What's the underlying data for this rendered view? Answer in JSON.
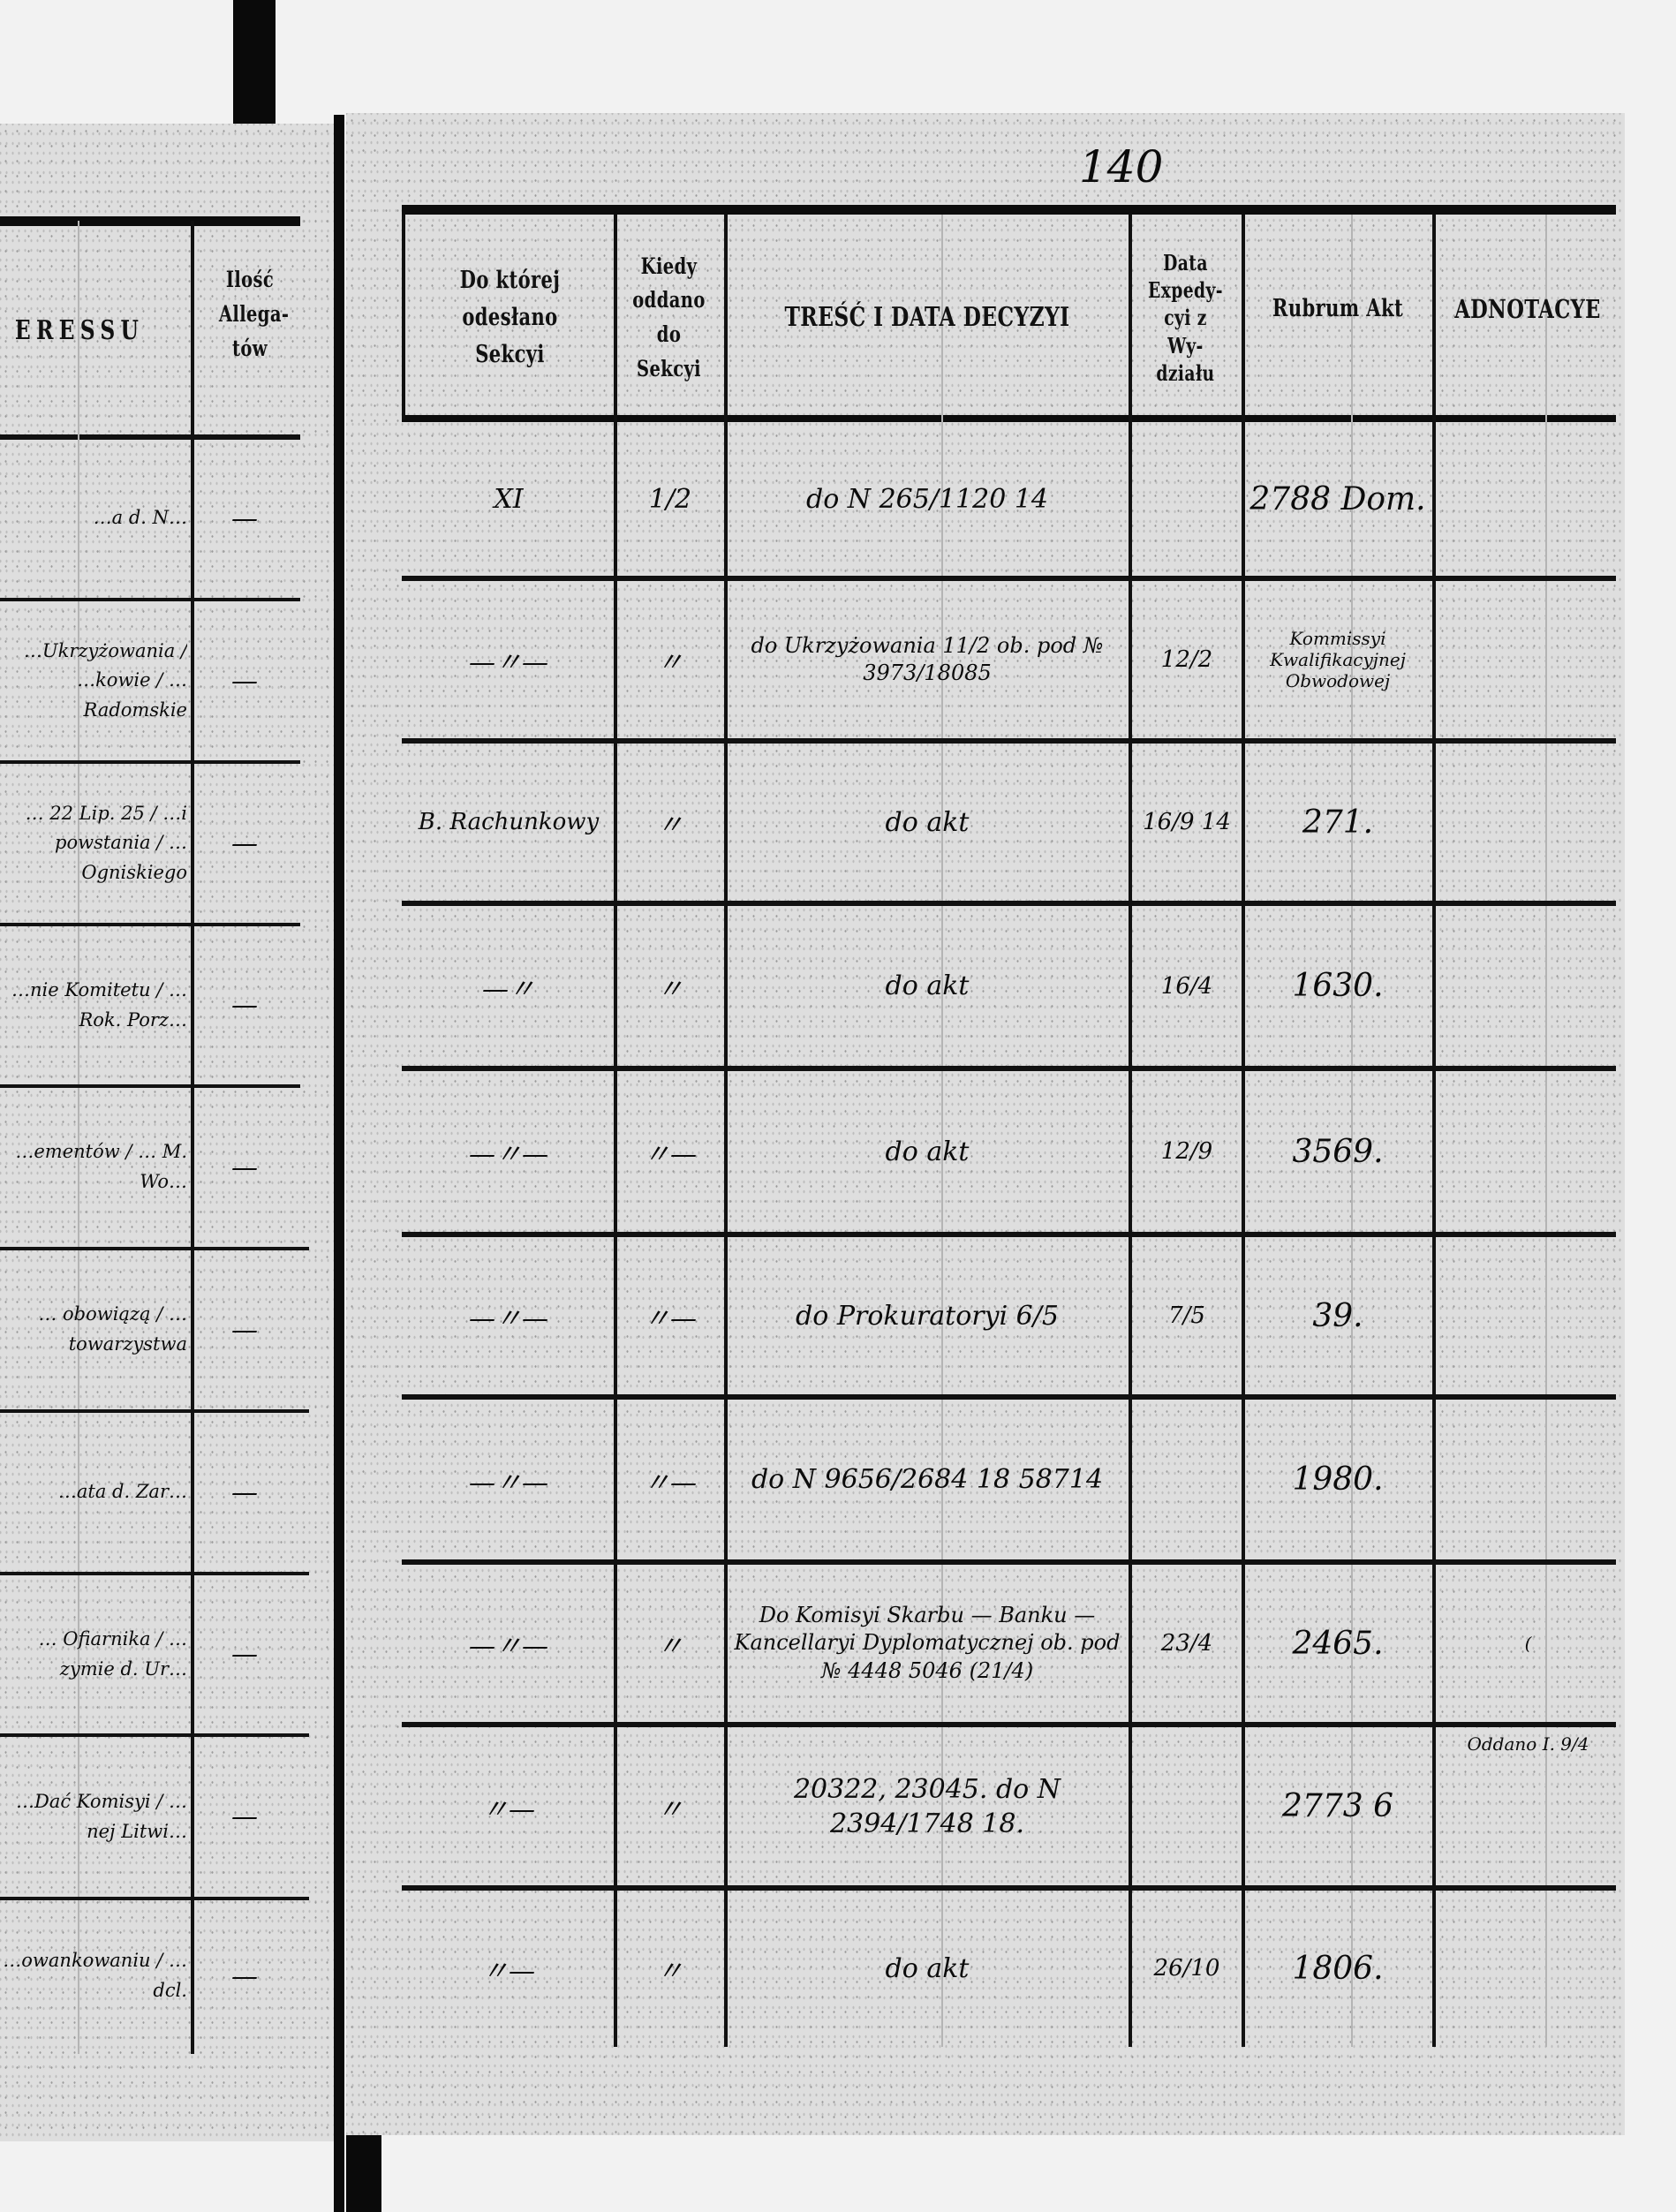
{
  "page_number": "140",
  "left_page": {
    "header": {
      "interest_col": "ERESSU",
      "allegata_col": "Ilość Allega- tów"
    },
    "rows": [
      {
        "text": "…a d. N…",
        "allegata": "—"
      },
      {
        "text": "…Ukrzyżowania / …kowie / …Radomskie",
        "allegata": "—"
      },
      {
        "text": "… 22 Lip. 25 / …i powstania / …Ogniskiego",
        "allegata": "—"
      },
      {
        "text": "…nie Komitetu / …Rok. Porz…",
        "allegata": "—"
      },
      {
        "text": "…ementów / … M. Wo…",
        "allegata": "—"
      },
      {
        "text": "… obowiązą / …towarzystwa",
        "allegata": "—"
      },
      {
        "text": "…ata d. Zar…",
        "allegata": "—"
      },
      {
        "text": "… Ofiarnika / …zymie d. Ur…",
        "allegata": "—"
      },
      {
        "text": "…Dać Komisyi / …nej Litwi…",
        "allegata": "—"
      },
      {
        "text": "…owankowaniu / …dcl.",
        "allegata": "—"
      }
    ]
  },
  "right_page": {
    "header": {
      "section": "Do której odesłano Sekcyi",
      "when": "Kiedy oddano do Sekcyi",
      "content": "TREŚĆ I DATA DECYZYI",
      "dispatch": "Data Expedy- cyi z Wy- działu",
      "rubrum": "Rubrum Akt",
      "notes": "ADNOTACYE"
    },
    "rows": [
      {
        "section": "XI",
        "when": "1/2",
        "content": "do N 265/1120 14",
        "dispatch": "",
        "rubrum": "2788 Dom.",
        "notes": ""
      },
      {
        "section": "—〃—",
        "when": "〃",
        "content": "do Ukrzyżowania 11/2 ob. pod № 3973/18085",
        "dispatch": "12/2",
        "rubrum": "Kommissyi Kwalifikacyjnej Obwodowej",
        "notes": ""
      },
      {
        "section": "B. Rachunkowy",
        "when": "〃",
        "content": "do akt",
        "dispatch": "16/9 14",
        "rubrum": "271.",
        "notes": ""
      },
      {
        "section": "—〃",
        "when": "〃",
        "content": "do akt",
        "dispatch": "16/4",
        "rubrum": "1630.",
        "notes": ""
      },
      {
        "section": "—〃—",
        "when": "〃—",
        "content": "do akt",
        "dispatch": "12/9",
        "rubrum": "3569.",
        "notes": ""
      },
      {
        "section": "—〃—",
        "when": "〃—",
        "content": "do Prokuratoryi 6/5",
        "dispatch": "7/5",
        "rubrum": "39.",
        "notes": ""
      },
      {
        "section": "—〃—",
        "when": "〃—",
        "content": "do N 9656/2684 18 58714",
        "dispatch": "",
        "rubrum": "1980.",
        "notes": ""
      },
      {
        "section": "—〃—",
        "when": "〃",
        "content": "Do Komisyi Skarbu — Banku — Kancellaryi Dyplomatycznej ob. pod № 4448 5046 (21/4)",
        "dispatch": "23/4",
        "rubrum": "2465.",
        "notes": "("
      },
      {
        "section": "〃—",
        "when": "〃",
        "content": "20322, 23045. do N 2394/1748 18.",
        "dispatch": "",
        "rubrum": "2773 6",
        "notes": "Oddano I. 9/4"
      },
      {
        "section": "〃—",
        "when": "〃",
        "content": "do akt",
        "dispatch": "26/10",
        "rubrum": "1806.",
        "notes": ""
      }
    ]
  }
}
